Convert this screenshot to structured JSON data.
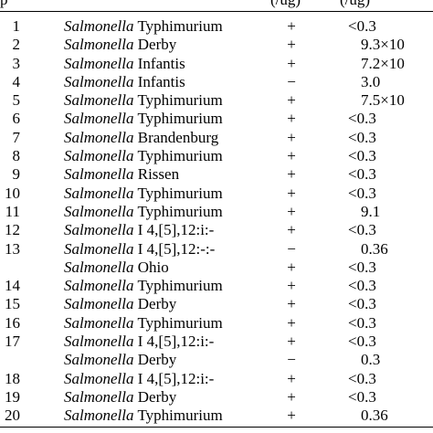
{
  "header": {
    "col_num": "p",
    "col_res": "(/ug)",
    "col_val": "(/ug)"
  },
  "table": {
    "rows": [
      {
        "num": "1",
        "genus": "Salmonella",
        "serovar": "Typhimurium",
        "result": "+",
        "value": "<0.3",
        "indent": false
      },
      {
        "num": "2",
        "genus": "Salmonella",
        "serovar": "Derby",
        "result": "+",
        "value": "9.3×10",
        "indent": true
      },
      {
        "num": "3",
        "genus": "Salmonella",
        "serovar": "Infantis",
        "result": "+",
        "value": "7.2×10",
        "indent": true
      },
      {
        "num": "4",
        "genus": "Salmonella",
        "serovar": "Infantis",
        "result": "−",
        "value": "3.0",
        "indent": true
      },
      {
        "num": "5",
        "genus": "Salmonella",
        "serovar": "Typhimurium",
        "result": "+",
        "value": "7.5×10",
        "indent": true
      },
      {
        "num": "6",
        "genus": "Salmonella",
        "serovar": "Typhimurium",
        "result": "+",
        "value": "<0.3",
        "indent": false
      },
      {
        "num": "7",
        "genus": "Salmonella",
        "serovar": "Brandenburg",
        "result": "+",
        "value": "<0.3",
        "indent": false
      },
      {
        "num": "8",
        "genus": "Salmonella",
        "serovar": "Typhimurium",
        "result": "+",
        "value": "<0.3",
        "indent": false
      },
      {
        "num": "9",
        "genus": "Salmonella",
        "serovar": "Rissen",
        "result": "+",
        "value": "<0.3",
        "indent": false
      },
      {
        "num": "10",
        "genus": "Salmonella",
        "serovar": "Typhimurium",
        "result": "+",
        "value": "<0.3",
        "indent": false
      },
      {
        "num": "11",
        "genus": "Salmonella",
        "serovar": "Typhimurium",
        "result": "+",
        "value": "9.1",
        "indent": true
      },
      {
        "num": "12",
        "genus": "Salmonella",
        "serovar": "I 4,[5],12:i:-",
        "result": "+",
        "value": "<0.3",
        "indent": false
      },
      {
        "num": "13",
        "genus": "Salmonella",
        "serovar": "I 4,[5],12:-:-",
        "result": "−",
        "value": "0.36",
        "indent": true
      },
      {
        "num": "",
        "genus": "Salmonella",
        "serovar": "Ohio",
        "result": "+",
        "value": "<0.3",
        "indent": false
      },
      {
        "num": "14",
        "genus": "Salmonella",
        "serovar": "Typhimurium",
        "result": "+",
        "value": "<0.3",
        "indent": false
      },
      {
        "num": "15",
        "genus": "Salmonella",
        "serovar": "Derby",
        "result": "+",
        "value": "<0.3",
        "indent": false
      },
      {
        "num": "16",
        "genus": "Salmonella",
        "serovar": "Typhimurium",
        "result": "+",
        "value": "<0.3",
        "indent": false
      },
      {
        "num": "17",
        "genus": "Salmonella",
        "serovar": "I 4,[5],12:i:-",
        "result": "+",
        "value": "<0.3",
        "indent": false
      },
      {
        "num": "",
        "genus": "Salmonella",
        "serovar": "Derby",
        "result": "−",
        "value": "0.3",
        "indent": true
      },
      {
        "num": "18",
        "genus": "Salmonella",
        "serovar": "I 4,[5],12:i:-",
        "result": "+",
        "value": "<0.3",
        "indent": false
      },
      {
        "num": "19",
        "genus": "Salmonella",
        "serovar": "Derby",
        "result": "+",
        "value": "<0.3",
        "indent": false
      },
      {
        "num": "20",
        "genus": "Salmonella",
        "serovar": "Typhimurium",
        "result": "+",
        "value": "0.36",
        "indent": true
      }
    ]
  }
}
